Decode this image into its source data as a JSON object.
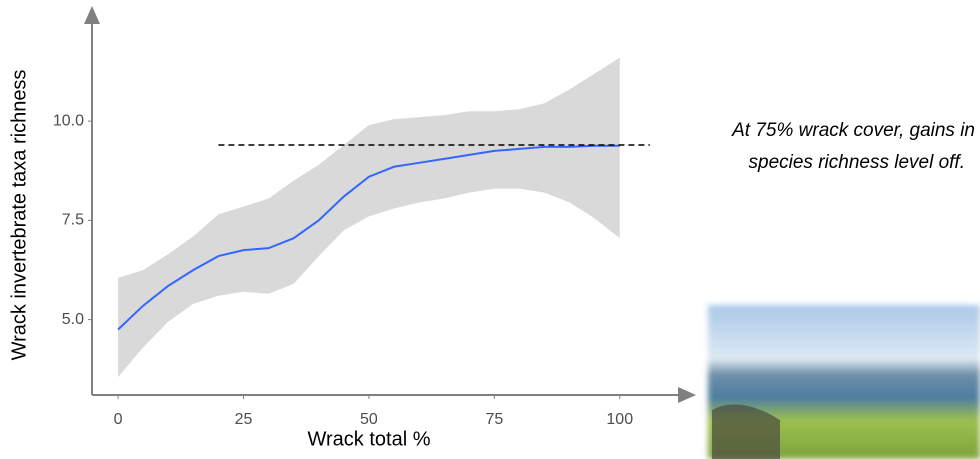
{
  "chart_data": {
    "type": "line",
    "xlabel": "Wrack total %",
    "ylabel": "Wrack invertebrate taxa richness",
    "x": [
      0,
      5,
      10,
      15,
      20,
      25,
      30,
      35,
      40,
      45,
      50,
      55,
      60,
      65,
      70,
      75,
      80,
      85,
      90,
      95,
      100
    ],
    "values": [
      4.75,
      5.35,
      5.85,
      6.25,
      6.6,
      6.75,
      6.8,
      7.05,
      7.5,
      8.1,
      8.6,
      8.85,
      8.95,
      9.05,
      9.15,
      9.25,
      9.3,
      9.35,
      9.35,
      9.38,
      9.38
    ],
    "lower": [
      3.55,
      4.3,
      4.95,
      5.4,
      5.6,
      5.7,
      5.65,
      5.9,
      6.6,
      7.25,
      7.6,
      7.8,
      7.95,
      8.05,
      8.2,
      8.3,
      8.3,
      8.2,
      7.95,
      7.55,
      7.05
    ],
    "upper": [
      6.05,
      6.25,
      6.65,
      7.1,
      7.65,
      7.85,
      8.05,
      8.5,
      8.9,
      9.4,
      9.9,
      10.05,
      10.1,
      10.15,
      10.25,
      10.25,
      10.3,
      10.45,
      10.8,
      11.2,
      11.6
    ],
    "color": "#3366ff",
    "band_color": "#d9d9d9",
    "xlim": [
      -5.2,
      114
    ],
    "ylim": [
      3.1,
      12.8
    ],
    "xticks": [
      0,
      25,
      50,
      75,
      100
    ],
    "yticks": [
      {
        "value": 5,
        "label": "5.0"
      },
      7.5,
      {
        "value": 10,
        "label": "10.0"
      }
    ],
    "reference_line": {
      "y": 9.4,
      "x_start": 20,
      "x_end": 106
    },
    "annotation": [
      "At 75% wrack cover, gains in",
      "species richness level off."
    ]
  }
}
